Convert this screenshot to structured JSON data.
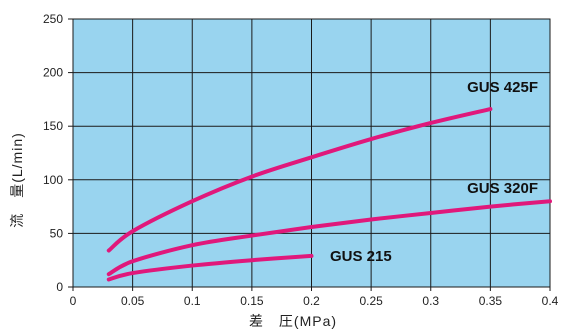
{
  "chart_data": {
    "type": "line",
    "xlabel": "差　圧(MPa)",
    "ylabel": "流　量(L/min)",
    "xlim": [
      0,
      0.4
    ],
    "ylim": [
      0,
      250
    ],
    "x_ticks": [
      0,
      0.05,
      0.1,
      0.15,
      0.2,
      0.25,
      0.3,
      0.35,
      0.4
    ],
    "x_tick_labels": [
      "0",
      "0.05",
      "0.1",
      "0.15",
      "0.2",
      "0.25",
      "0.3",
      "0.35",
      "0.4"
    ],
    "y_ticks": [
      0,
      50,
      100,
      150,
      200,
      250
    ],
    "y_tick_labels": [
      "0",
      "50",
      "100",
      "150",
      "200",
      "250"
    ],
    "grid": true,
    "series": [
      {
        "name": "GUS 425F",
        "x": [
          0.03,
          0.05,
          0.1,
          0.15,
          0.2,
          0.25,
          0.3,
          0.35
        ],
        "y": [
          34,
          52,
          80,
          103,
          121,
          138,
          153,
          166
        ]
      },
      {
        "name": "GUS 320F",
        "x": [
          0.03,
          0.05,
          0.1,
          0.15,
          0.2,
          0.25,
          0.3,
          0.35,
          0.4
        ],
        "y": [
          12,
          24,
          39,
          48,
          56,
          63,
          69,
          75,
          80
        ]
      },
      {
        "name": "GUS 215",
        "x": [
          0.03,
          0.05,
          0.1,
          0.15,
          0.2
        ],
        "y": [
          7,
          13,
          20,
          25,
          29
        ]
      }
    ]
  },
  "colors": {
    "plot_background": "#99d4ef",
    "grid": "#1a1a1a",
    "series_line": "#e0187b"
  }
}
